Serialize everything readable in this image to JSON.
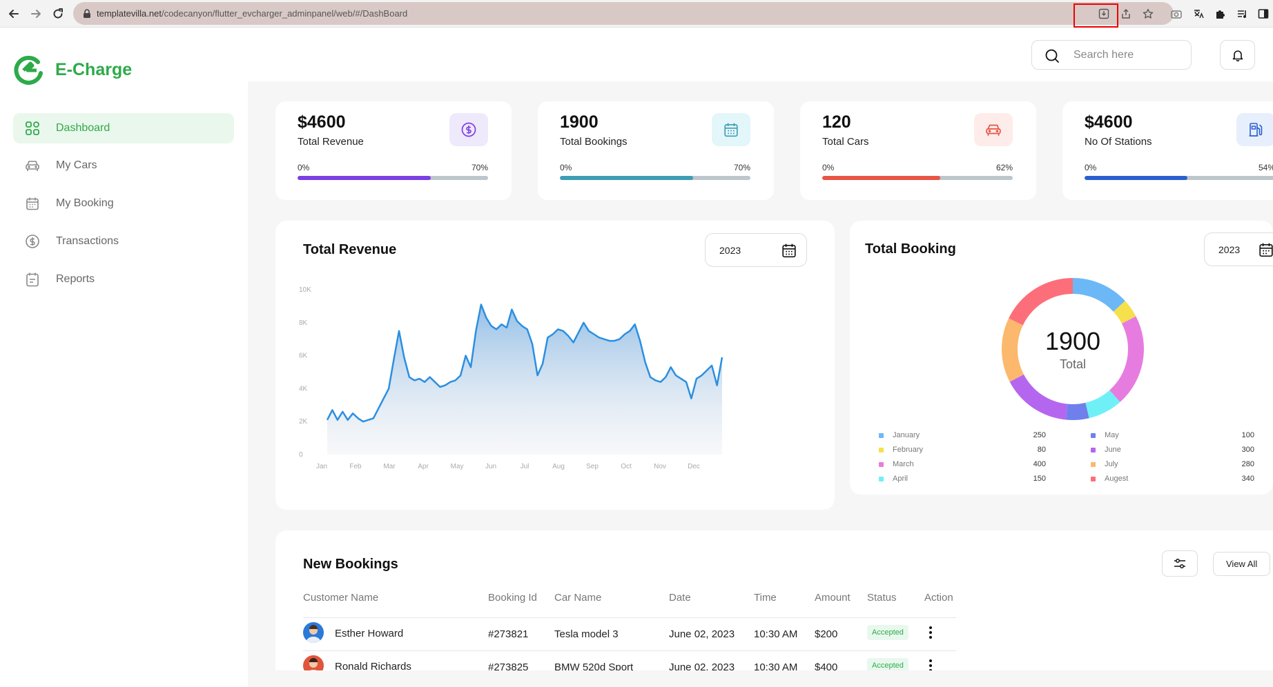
{
  "browser": {
    "url_host": "templatevilla.net",
    "url_path": "/codecanyon/flutter_evcharger_adminpanel/web/#/DashBoard"
  },
  "brand": {
    "name": "E-Charge",
    "color": "#2eaa4a"
  },
  "sidebar": {
    "items": [
      {
        "label": "Dashboard",
        "icon": "grid-icon",
        "active": true
      },
      {
        "label": "My Cars",
        "icon": "car-icon",
        "active": false
      },
      {
        "label": "My Booking",
        "icon": "calendar-icon",
        "active": false
      },
      {
        "label": "Transactions",
        "icon": "dollar-icon",
        "active": false
      },
      {
        "label": "Reports",
        "icon": "report-icon",
        "active": false
      }
    ]
  },
  "topbar": {
    "search_placeholder": "Search here"
  },
  "stats": [
    {
      "value": "$4600",
      "label": "Total Revenue",
      "min": "0%",
      "max": "70%",
      "progress": 0.7,
      "color": "#7b3fe4",
      "icon_bg": "#efe9fc",
      "icon": "dollar-circle-icon"
    },
    {
      "value": "1900",
      "label": "Total Bookings",
      "min": "0%",
      "max": "70%",
      "progress": 0.7,
      "color": "#3d9db3",
      "icon_bg": "#e3f6fa",
      "icon": "calendar-icon"
    },
    {
      "value": "120",
      "label": "Total Cars",
      "min": "0%",
      "max": "62%",
      "progress": 0.62,
      "color": "#e85444",
      "icon_bg": "#fdecea",
      "icon": "car-icon"
    },
    {
      "value": "$4600",
      "label": "No Of Stations",
      "min": "0%",
      "max": "54%",
      "progress": 0.54,
      "color": "#2b5fd0",
      "icon_bg": "#e8effc",
      "icon": "fuel-station-icon"
    }
  ],
  "revenue_panel": {
    "title": "Total Revenue",
    "year": "2023"
  },
  "booking_panel": {
    "title": "Total Booking",
    "year": "2023",
    "center_value": "1900",
    "center_label": "Total"
  },
  "chart_data": [
    {
      "type": "area",
      "title": "Total Revenue",
      "xlabel": "",
      "ylabel": "",
      "ylim": [
        0,
        10000
      ],
      "y_ticks": [
        "0",
        "2K",
        "4K",
        "6K",
        "8K",
        "10K"
      ],
      "x_tick_labels": [
        "Jan",
        "Feb",
        "Mar",
        "Apr",
        "May",
        "Jun",
        "Jul",
        "Aug",
        "Sep",
        "Oct",
        "Nov",
        "Dec"
      ],
      "color": "#2b8fe0",
      "values": [
        2100,
        2700,
        2100,
        2600,
        2100,
        2500,
        2200,
        2000,
        2100,
        2200,
        2800,
        3400,
        4000,
        5800,
        7500,
        5900,
        4700,
        4500,
        4600,
        4400,
        4700,
        4400,
        4100,
        4200,
        4400,
        4500,
        4800,
        6000,
        5300,
        7500,
        9100,
        8300,
        7800,
        7600,
        7900,
        7700,
        8800,
        8100,
        7800,
        7600,
        6700,
        4800,
        5500,
        7100,
        7300,
        7600,
        7500,
        7200,
        6800,
        7400,
        8000,
        7500,
        7300,
        7100,
        7000,
        6900,
        6900,
        7000,
        7300,
        7500,
        7900,
        6900,
        5600,
        4700,
        4500,
        4400,
        4700,
        5300,
        4800,
        4600,
        4400,
        3400,
        4600,
        4800,
        5100,
        5400,
        4200,
        5900
      ]
    },
    {
      "type": "pie",
      "title": "Total Booking",
      "categories": [
        "January",
        "February",
        "March",
        "April",
        "May",
        "June",
        "July",
        "Augest"
      ],
      "values": [
        250,
        80,
        400,
        150,
        100,
        300,
        280,
        340
      ],
      "colors": [
        "#6cb8f7",
        "#f6e04c",
        "#e77ce0",
        "#6ff0f6",
        "#6f80ec",
        "#b566ee",
        "#fcb86c",
        "#fc6f7a"
      ]
    }
  ],
  "bookings": {
    "title": "New Bookings",
    "view_all": "View All",
    "columns": [
      "Customer Name",
      "Booking Id",
      "Car Name",
      "Date",
      "Time",
      "Amount",
      "Status",
      "Action"
    ],
    "rows": [
      {
        "customer": "Esther Howard",
        "id": "#273821",
        "car": "Tesla model 3",
        "date": "June 02, 2023",
        "time": "10:30 AM",
        "amount": "$200",
        "status": "Accepted",
        "avatar_color": "#2a7ad8"
      },
      {
        "customer": "Ronald Richards",
        "id": "#273825",
        "car": "BMW 520d Sport",
        "date": "June 02, 2023",
        "time": "10:30 AM",
        "amount": "$400",
        "status": "Accepted",
        "avatar_color": "#e0553c"
      }
    ]
  }
}
